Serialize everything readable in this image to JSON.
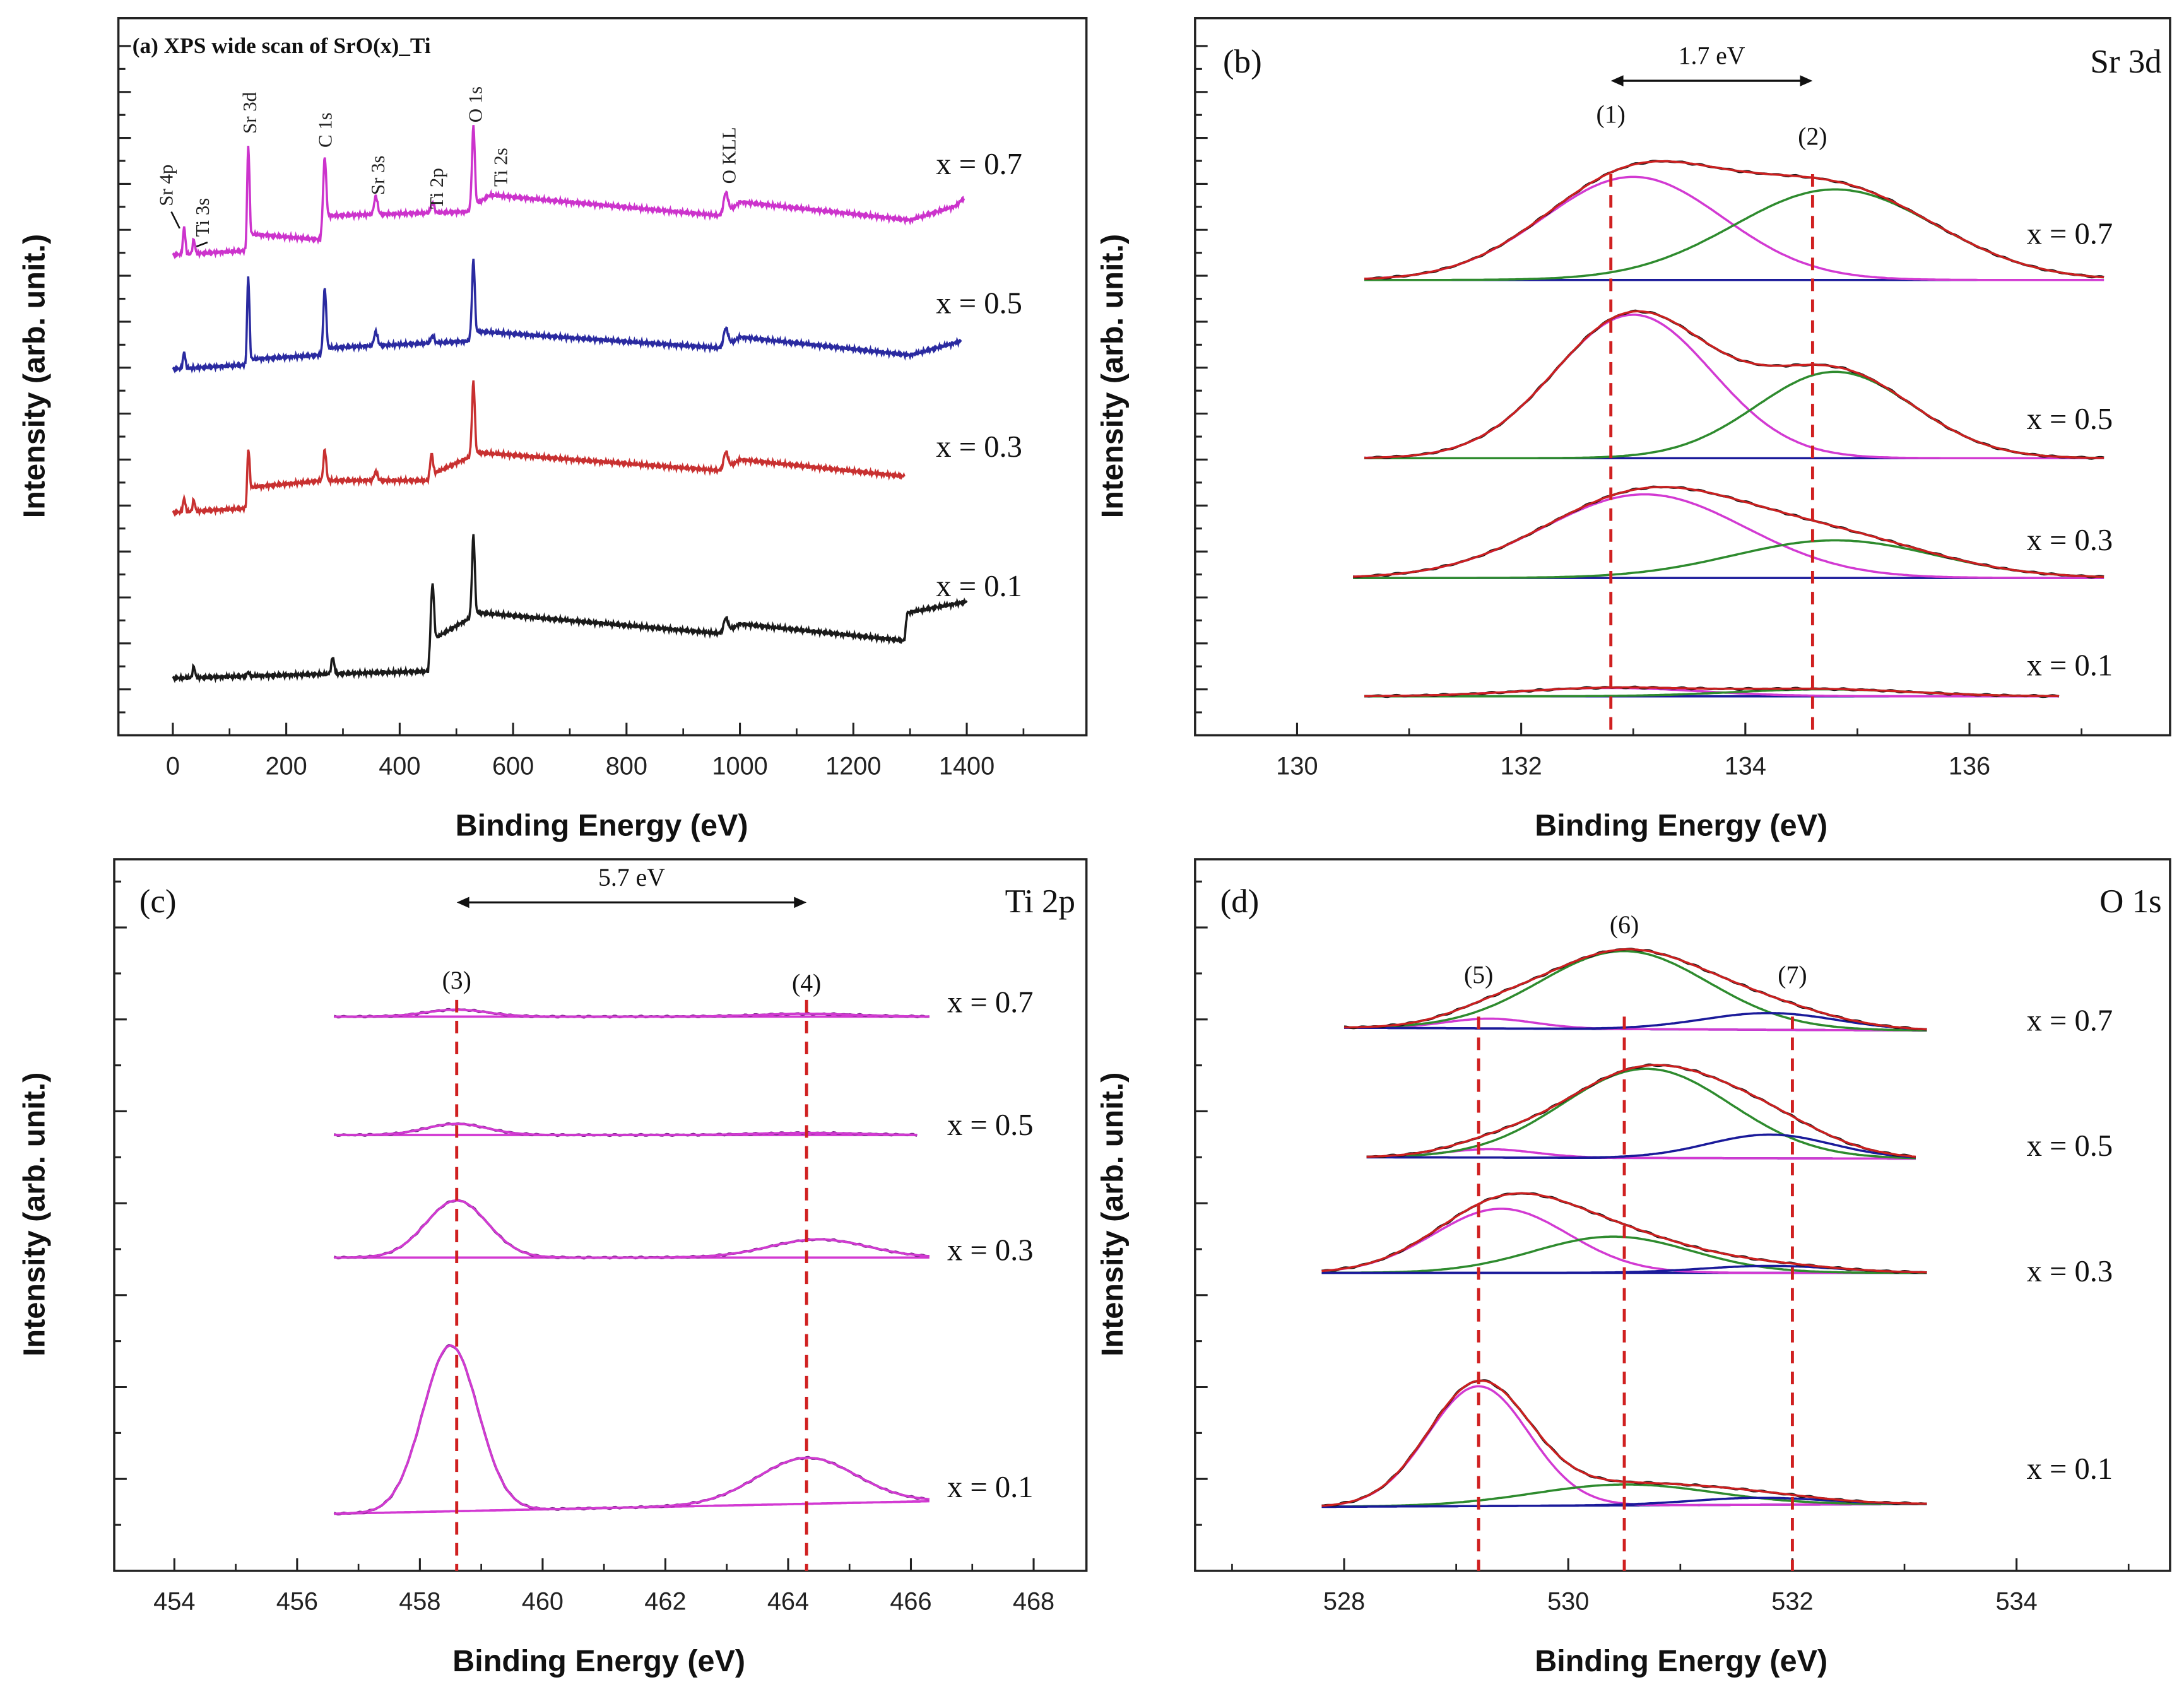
{
  "chart_data": [
    {
      "type": "line",
      "panel_label": "",
      "title": "(a) XPS wide scan of SrO(x)_Ti",
      "corner_label": "",
      "xlabel": "Binding Energy (eV)",
      "ylabel": "Intensity (arb. unit.)",
      "xlim": [
        -96,
        1611
      ],
      "ylim": [
        0,
        103
      ],
      "xticks": [
        0,
        200,
        400,
        600,
        800,
        1000,
        1200,
        1400
      ],
      "grid": false,
      "series": [
        {
          "name": "x = 0.7",
          "color": "#cc33cc",
          "range": [
            0,
            1395
          ],
          "background": [
            [
              0,
              69
            ],
            [
              130,
              69.6
            ],
            [
              135,
              72
            ],
            [
              260,
              71.2
            ],
            [
              265,
              74.6
            ],
            [
              520,
              75.2
            ],
            [
              540,
              76.6
            ],
            [
              560,
              77.6
            ],
            [
              970,
              74.6
            ],
            [
              1000,
              76.6
            ],
            [
              1300,
              74
            ],
            [
              1380,
              76
            ],
            [
              1395,
              77.2
            ]
          ],
          "peaks": [
            {
              "center": 20,
              "height": 4,
              "width": 2
            },
            {
              "center": 37,
              "height": 2,
              "width": 2
            },
            {
              "center": 133,
              "height": 13.6,
              "width": 2
            },
            {
              "center": 268,
              "height": 8.4,
              "width": 2.5
            },
            {
              "center": 358,
              "height": 2.6,
              "width": 3
            },
            {
              "center": 458,
              "height": 1.4,
              "width": 3
            },
            {
              "center": 530,
              "height": 11.6,
              "width": 2.5
            },
            {
              "center": 975,
              "height": 3,
              "width": 4
            }
          ]
        },
        {
          "name": "x = 0.5",
          "color": "#2a2aa0",
          "range": [
            0,
            1390
          ],
          "background": [
            [
              0,
              52.6
            ],
            [
              130,
              53.2
            ],
            [
              135,
              54
            ],
            [
              260,
              54.6
            ],
            [
              265,
              55.6
            ],
            [
              520,
              56.6
            ],
            [
              540,
              58
            ],
            [
              970,
              55.6
            ],
            [
              1000,
              57.2
            ],
            [
              1300,
              54.6
            ],
            [
              1390,
              56.6
            ]
          ],
          "peaks": [
            {
              "center": 20,
              "height": 2.4,
              "width": 2
            },
            {
              "center": 133,
              "height": 12.2,
              "width": 2
            },
            {
              "center": 268,
              "height": 8.6,
              "width": 2.5
            },
            {
              "center": 358,
              "height": 2,
              "width": 3
            },
            {
              "center": 458,
              "height": 1,
              "width": 3
            },
            {
              "center": 530,
              "height": 11,
              "width": 2.5
            },
            {
              "center": 975,
              "height": 2.6,
              "width": 4
            }
          ]
        },
        {
          "name": "x = 0.3",
          "color": "#c83030",
          "range": [
            0,
            1290
          ],
          "background": [
            [
              0,
              32
            ],
            [
              130,
              32.6
            ],
            [
              135,
              35.6
            ],
            [
              265,
              36.6
            ],
            [
              455,
              36.6
            ],
            [
              460,
              37.6
            ],
            [
              540,
              40.6
            ],
            [
              970,
              38
            ],
            [
              1000,
              39.6
            ],
            [
              1290,
              37.2
            ]
          ],
          "peaks": [
            {
              "center": 20,
              "height": 2,
              "width": 2
            },
            {
              "center": 37,
              "height": 1.6,
              "width": 2
            },
            {
              "center": 133,
              "height": 6.6,
              "width": 2
            },
            {
              "center": 268,
              "height": 4.4,
              "width": 2.5
            },
            {
              "center": 358,
              "height": 1.2,
              "width": 3
            },
            {
              "center": 456,
              "height": 3.6,
              "width": 2.5
            },
            {
              "center": 530,
              "height": 10.6,
              "width": 2.5
            },
            {
              "center": 975,
              "height": 2.4,
              "width": 4
            }
          ]
        },
        {
          "name": "x = 0.1",
          "color": "#1a1a1a",
          "range": [
            0,
            1400
          ],
          "background": [
            [
              0,
              8.2
            ],
            [
              450,
              9.2
            ],
            [
              455,
              13.6
            ],
            [
              540,
              17.6
            ],
            [
              970,
              14.6
            ],
            [
              1000,
              16
            ],
            [
              1290,
              13.6
            ],
            [
              1295,
              17.6
            ],
            [
              1400,
              19.2
            ]
          ],
          "peaks": [
            {
              "center": 37,
              "height": 1.6,
              "width": 2
            },
            {
              "center": 133,
              "height": 0.6,
              "width": 2
            },
            {
              "center": 282,
              "height": 2.4,
              "width": 2.5
            },
            {
              "center": 458,
              "height": 8,
              "width": 2.5
            },
            {
              "center": 530,
              "height": 11.6,
              "width": 2.5
            },
            {
              "center": 975,
              "height": 2,
              "width": 4
            }
          ]
        }
      ],
      "annotations": [
        {
          "text": "Sr 4p",
          "x": 20
        },
        {
          "text": "Ti 3s",
          "x": 37
        },
        {
          "text": "Sr 3d",
          "x": 133
        },
        {
          "text": "C 1s",
          "x": 268
        },
        {
          "text": "Sr 3s",
          "x": 358
        },
        {
          "text": "Ti 2p",
          "x": 458
        },
        {
          "text": "O 1s",
          "x": 530
        },
        {
          "text": "Ti 2s",
          "x": 563
        },
        {
          "text": "O KLL",
          "x": 975
        }
      ]
    },
    {
      "type": "line",
      "panel_label": "(b)",
      "title": "",
      "corner_label": "Sr 3d",
      "xlabel": "Binding Energy (eV)",
      "ylabel": "Intensity (arb. unit.)",
      "xlim": [
        129.09,
        137.79
      ],
      "ylim": [
        0,
        103
      ],
      "xticks": [
        130,
        132,
        134,
        136
      ],
      "grid": false,
      "envelope_colors": [
        "#1a1a1a",
        "#cc2020"
      ],
      "baseline_color": "#1a1a9a",
      "series": [
        {
          "name": "x = 0.7",
          "range": [
            130.6,
            137.2
          ],
          "baseline": [
            65.4,
            65.4
          ],
          "components": [
            {
              "center": 133.0,
              "height": 14.8,
              "sigma": 0.8,
              "color": "#d23ad2"
            },
            {
              "center": 134.8,
              "height": 13,
              "sigma": 0.9,
              "color": "#2e8b2e"
            }
          ]
        },
        {
          "name": "x = 0.5",
          "range": [
            130.6,
            137.2
          ],
          "baseline": [
            39.8,
            39.8
          ],
          "components": [
            {
              "center": 133.0,
              "height": 20.6,
              "sigma": 0.7,
              "color": "#d23ad2"
            },
            {
              "center": 134.8,
              "height": 12.4,
              "sigma": 0.7,
              "color": "#2e8b2e"
            }
          ]
        },
        {
          "name": "x = 0.3",
          "range": [
            130.5,
            137.2
          ],
          "baseline": [
            22.6,
            22.6
          ],
          "components": [
            {
              "center": 133.1,
              "height": 12,
              "sigma": 0.9,
              "color": "#d23ad2"
            },
            {
              "center": 134.8,
              "height": 5.4,
              "sigma": 0.9,
              "color": "#2e8b2e"
            }
          ]
        },
        {
          "name": "x = 0.1",
          "range": [
            130.6,
            136.8
          ],
          "baseline": [
            5.6,
            5.6
          ],
          "components": [
            {
              "center": 132.8,
              "height": 1.2,
              "sigma": 0.8,
              "color": "#d23ad2"
            },
            {
              "center": 134.7,
              "height": 1.0,
              "sigma": 0.8,
              "color": "#2e8b2e"
            }
          ]
        }
      ],
      "markers": [
        {
          "x": 132.8,
          "label": "(1)"
        },
        {
          "x": 134.6,
          "label": "(2)"
        }
      ],
      "arrow": {
        "from": 132.8,
        "to": 134.6,
        "label": "1.7 eV"
      }
    },
    {
      "type": "line",
      "panel_label": "(c)",
      "title": "",
      "corner_label": "Ti 2p",
      "xlabel": "Binding Energy (eV)",
      "ylabel": "Intensity (arb. unit.)",
      "xlim": [
        453.02,
        468.86
      ],
      "ylim": [
        0,
        102.2
      ],
      "xticks": [
        454,
        456,
        458,
        460,
        462,
        464,
        466,
        468
      ],
      "grid": false,
      "envelope_colors": [
        "#7a2a8a",
        "#d23ad2"
      ],
      "baseline_color": "#d23ad2",
      "series": [
        {
          "name": "x = 0.7",
          "range": [
            456.6,
            466.3
          ],
          "baseline": [
            79.6,
            79.6
          ],
          "components": [
            {
              "center": 458.6,
              "height": 1.0,
              "sigma": 0.5,
              "color": "#d23ad2"
            },
            {
              "center": 464.3,
              "height": 0.4,
              "sigma": 0.8,
              "color": "#d23ad2"
            }
          ]
        },
        {
          "name": "x = 0.5",
          "range": [
            456.6,
            466.1
          ],
          "baseline": [
            62.6,
            62.6
          ],
          "components": [
            {
              "center": 458.6,
              "height": 1.6,
              "sigma": 0.5,
              "color": "#d23ad2"
            },
            {
              "center": 464.3,
              "height": 0.3,
              "sigma": 0.8,
              "color": "#d23ad2"
            }
          ]
        },
        {
          "name": "x = 0.3",
          "range": [
            456.6,
            466.3
          ],
          "baseline": [
            45,
            45
          ],
          "components": [
            {
              "center": 458.6,
              "height": 8.2,
              "sigma": 0.5,
              "color": "#d23ad2"
            },
            {
              "center": 464.5,
              "height": 2.6,
              "sigma": 0.8,
              "color": "#d23ad2"
            }
          ]
        },
        {
          "name": "x = 0.1",
          "range": [
            456.6,
            466.3
          ],
          "baseline": [
            8.2,
            10
          ],
          "components": [
            {
              "center": 458.5,
              "height": 23.8,
              "sigma": 0.45,
              "color": "#d23ad2"
            },
            {
              "center": 464.3,
              "height": 6.6,
              "sigma": 0.8,
              "color": "#d23ad2"
            }
          ]
        }
      ],
      "markers": [
        {
          "x": 458.6,
          "label": "(3)"
        },
        {
          "x": 464.3,
          "label": "(4)"
        }
      ],
      "arrow": {
        "from": 458.6,
        "to": 464.3,
        "label": "5.7 eV"
      }
    },
    {
      "type": "line",
      "panel_label": "(d)",
      "title": "",
      "corner_label": "O 1s",
      "xlabel": "Binding Energy (eV)",
      "ylabel": "Intensity (arb. unit.)",
      "xlim": [
        526.67,
        535.37
      ],
      "ylim": [
        0,
        102.2
      ],
      "xticks": [
        528,
        530,
        532,
        534
      ],
      "grid": false,
      "envelope_colors": [
        "#1a1a1a",
        "#cc2020"
      ],
      "baseline_color": "#1a1a9a",
      "series": [
        {
          "name": "x = 0.7",
          "range": [
            528.0,
            533.2
          ],
          "baseline": [
            78,
            77.6
          ],
          "components": [
            {
              "center": 529.3,
              "height": 1.4,
              "sigma": 0.4,
              "color": "#d23ad2"
            },
            {
              "center": 530.5,
              "height": 11.2,
              "sigma": 0.75,
              "color": "#2e8b2e"
            },
            {
              "center": 531.8,
              "height": 2.4,
              "sigma": 0.6,
              "color": "#1a1a9a"
            }
          ]
        },
        {
          "name": "x = 0.5",
          "range": [
            528.2,
            533.1
          ],
          "baseline": [
            59.4,
            59.2
          ],
          "components": [
            {
              "center": 529.3,
              "height": 1.2,
              "sigma": 0.4,
              "color": "#d23ad2"
            },
            {
              "center": 530.7,
              "height": 12.8,
              "sigma": 0.75,
              "color": "#2e8b2e"
            },
            {
              "center": 531.8,
              "height": 3.4,
              "sigma": 0.55,
              "color": "#1a1a9a"
            }
          ]
        },
        {
          "name": "x = 0.3",
          "range": [
            527.8,
            533.2
          ],
          "baseline": [
            42.8,
            42.8
          ],
          "components": [
            {
              "center": 529.4,
              "height": 9.2,
              "sigma": 0.6,
              "color": "#d23ad2"
            },
            {
              "center": 530.4,
              "height": 5.2,
              "sigma": 0.7,
              "color": "#2e8b2e"
            },
            {
              "center": 531.8,
              "height": 1.0,
              "sigma": 0.6,
              "color": "#1a1a9a"
            }
          ]
        },
        {
          "name": "x = 0.1",
          "range": [
            527.8,
            533.2
          ],
          "baseline": [
            9.2,
            9.6
          ],
          "components": [
            {
              "center": 529.2,
              "height": 17.2,
              "sigma": 0.45,
              "color": "#d23ad2"
            },
            {
              "center": 530.5,
              "height": 3,
              "sigma": 0.8,
              "color": "#2e8b2e"
            },
            {
              "center": 531.7,
              "height": 1.0,
              "sigma": 0.6,
              "color": "#1a1a9a"
            }
          ]
        }
      ],
      "markers": [
        {
          "x": 529.2,
          "label": "(5)"
        },
        {
          "x": 530.5,
          "label": "(6)"
        },
        {
          "x": 532.0,
          "label": "(7)"
        }
      ]
    }
  ]
}
